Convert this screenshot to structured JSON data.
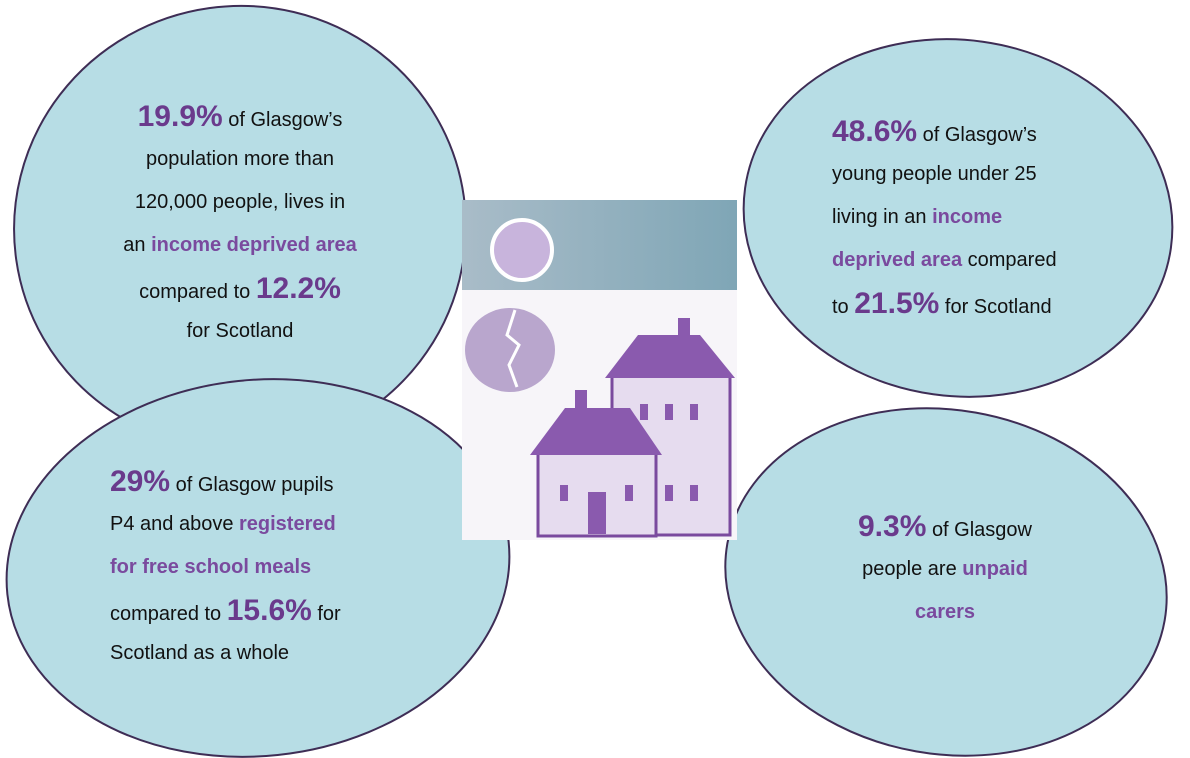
{
  "bubbles": [
    {
      "lines": [
        [
          "19.9%",
          "of Glasgow’s"
        ],
        [
          "population more than"
        ],
        [
          "120,000 people, lives in"
        ],
        [
          "an",
          "income deprived area"
        ],
        [
          "compared to",
          "12.2%"
        ],
        [
          "for Scotland"
        ]
      ]
    },
    {
      "lines": [
        [
          "48.6%",
          "of Glasgow’s"
        ],
        [
          "young people under 25"
        ],
        [
          "living in an",
          "income"
        ],
        [
          "deprived area",
          "compared"
        ],
        [
          "to",
          "21.5%",
          "for Scotland"
        ]
      ]
    },
    {
      "lines": [
        [
          "29%",
          "of Glasgow pupils"
        ],
        [
          "P4 and above",
          "registered"
        ],
        [
          "for free school meals"
        ],
        [
          "compared to",
          "15.6%",
          "for"
        ],
        [
          "Scotland as a whole"
        ]
      ]
    },
    {
      "lines": [
        [
          "9.3%",
          "of Glasgow"
        ],
        [
          "people are",
          "unpaid"
        ],
        [
          "carers"
        ]
      ]
    }
  ]
}
